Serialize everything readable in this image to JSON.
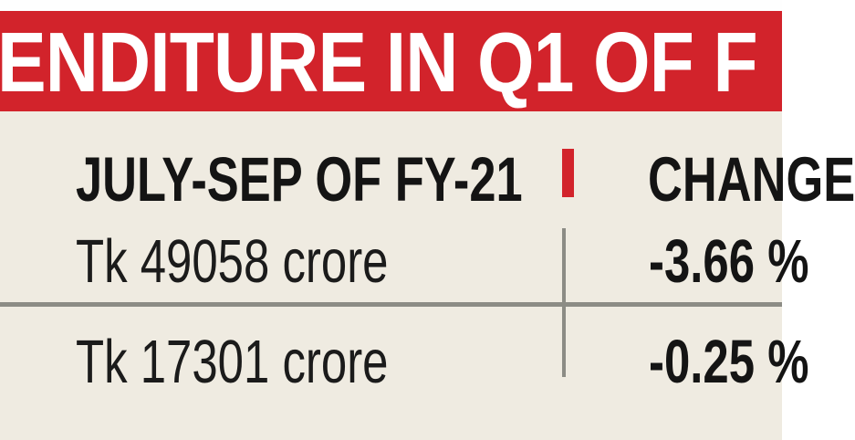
{
  "banner": {
    "title": "ENDITURE IN Q1 OF F",
    "bg_color": "#d2232b",
    "text_color": "#ffffff"
  },
  "table": {
    "col1_header": "JULY-SEP OF FY-21",
    "col2_header": "CHANGE",
    "rows": [
      {
        "value": "Tk 49058 crore",
        "change": "-3.66 %"
      },
      {
        "value": "Tk 17301 crore",
        "change": "-0.25 %"
      }
    ]
  },
  "colors": {
    "accent_red": "#d2232b",
    "panel_cream": "#efebe1",
    "rule_gray": "#8c8c85",
    "text_black": "#1b1b1b"
  },
  "chart_data": {
    "type": "table",
    "title": "ENDITURE IN Q1 OF F",
    "columns": [
      "JULY-SEP OF FY-21",
      "CHANGE"
    ],
    "rows": [
      [
        "Tk 49058 crore",
        "-3.66 %"
      ],
      [
        "Tk 17301 crore",
        "-0.25 %"
      ]
    ],
    "notes": "Newspaper infographic table; title and right column clipped at image edges; values in Bangladeshi Taka (crore) with quarter-over-quarter percent change"
  }
}
